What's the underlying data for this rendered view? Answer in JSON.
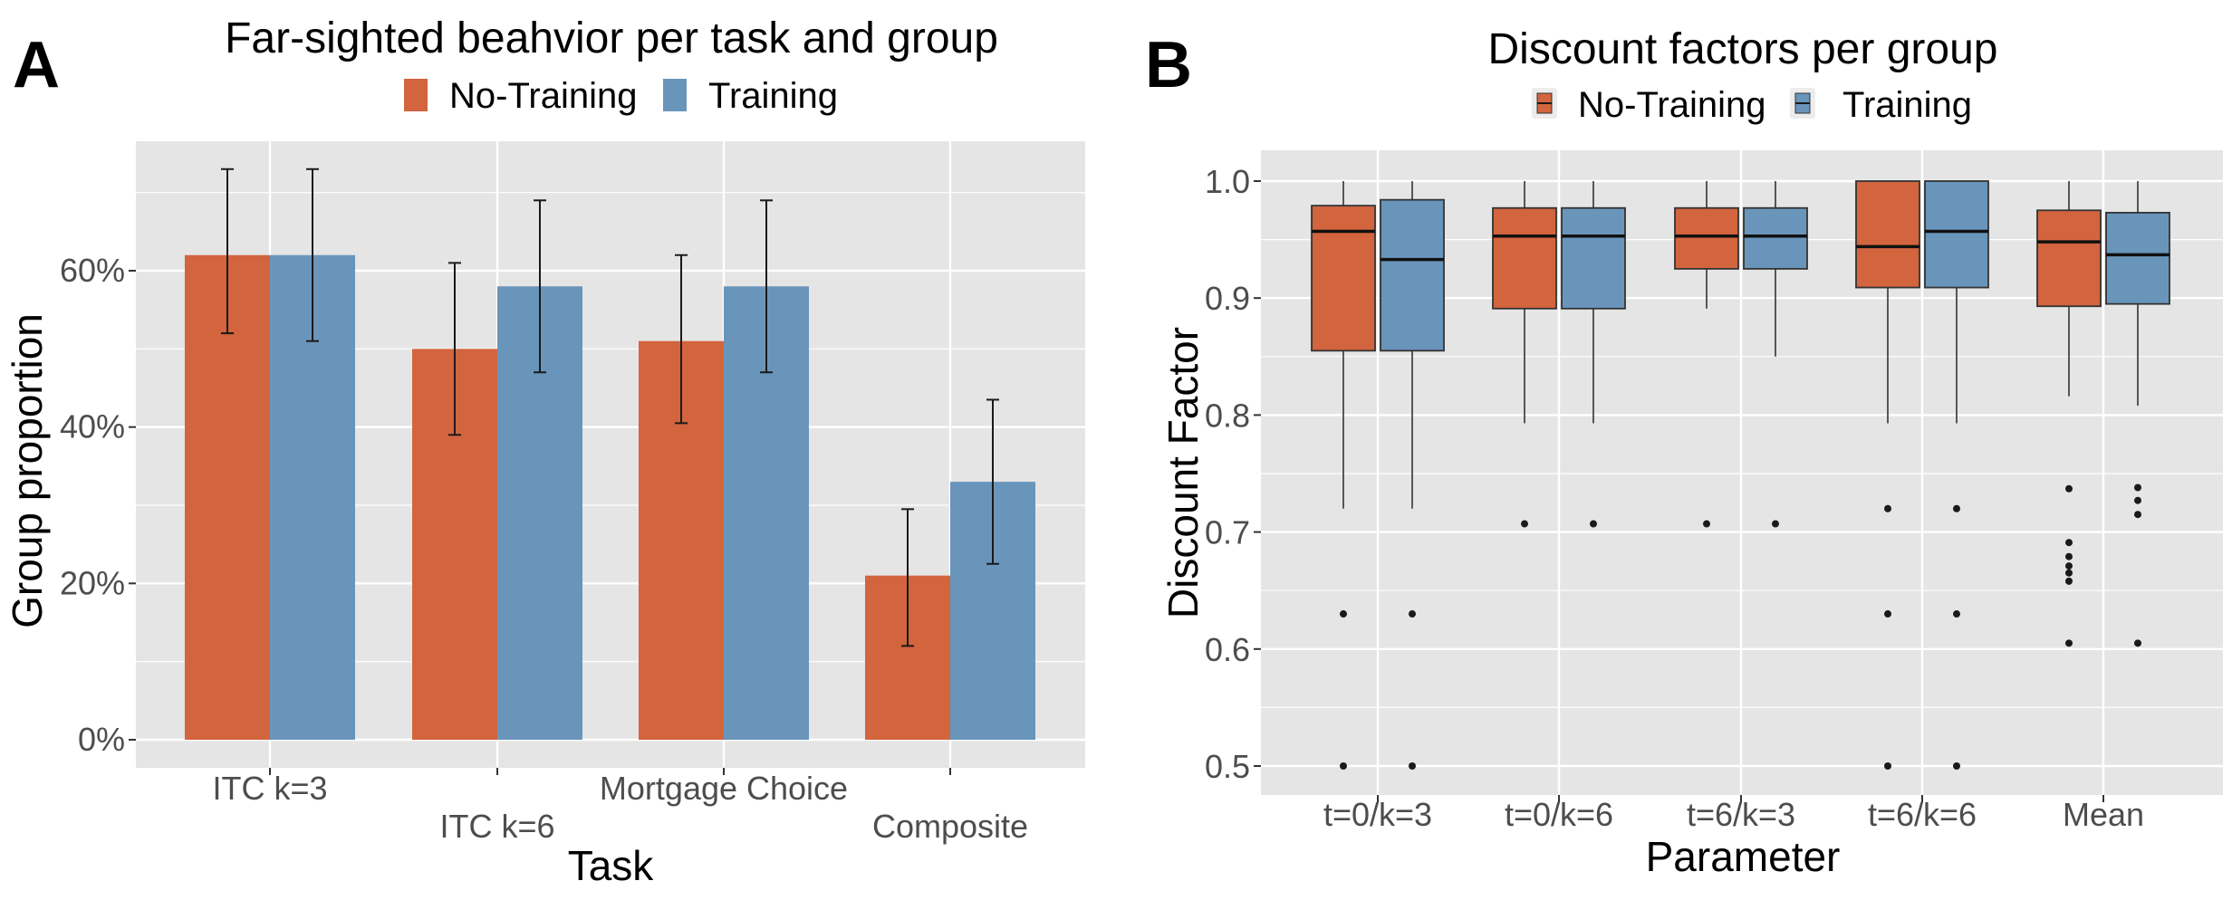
{
  "colors": {
    "no_training": "#d2643e",
    "training": "#6995bb",
    "panel_bg": "#e5e5e5",
    "grid": "#ffffff"
  },
  "chart_data": [
    {
      "panel_label": "A",
      "type": "bar",
      "title": "Far-sighted beahvior per task and group",
      "xlabel": "Task",
      "ylabel": "Group proportion",
      "categories": [
        "ITC k=3",
        "ITC k=6",
        "Mortgage Choice",
        "Composite"
      ],
      "ylim": [
        0,
        0.75
      ],
      "yticks": [
        {
          "value": 0,
          "label": "0%"
        },
        {
          "value": 0.2,
          "label": "20%"
        },
        {
          "value": 0.4,
          "label": "40%"
        },
        {
          "value": 0.6,
          "label": "60%"
        }
      ],
      "series": [
        {
          "name": "No-Training",
          "color": "#d2643e",
          "values": [
            0.62,
            0.5,
            0.51,
            0.21
          ],
          "error_low": [
            0.52,
            0.39,
            0.405,
            0.12
          ],
          "error_high": [
            0.73,
            0.61,
            0.62,
            0.295
          ]
        },
        {
          "name": "Training",
          "color": "#6995bb",
          "values": [
            0.62,
            0.58,
            0.58,
            0.33
          ],
          "error_low": [
            0.51,
            0.47,
            0.47,
            0.225
          ],
          "error_high": [
            0.73,
            0.69,
            0.69,
            0.435
          ]
        }
      ],
      "legend": "top",
      "grid": true
    },
    {
      "panel_label": "B",
      "type": "box",
      "title": "Discount factors per group",
      "xlabel": "Parameter",
      "ylabel": "Discount Factor",
      "categories": [
        "t=0/k=3",
        "t=0/k=6",
        "t=6/k=3",
        "t=6/k=6",
        "Mean"
      ],
      "ylim": [
        0.48,
        1.015
      ],
      "yticks": [
        {
          "value": 0.5,
          "label": "0.5"
        },
        {
          "value": 0.6,
          "label": "0.6"
        },
        {
          "value": 0.7,
          "label": "0.7"
        },
        {
          "value": 0.8,
          "label": "0.8"
        },
        {
          "value": 0.9,
          "label": "0.9"
        },
        {
          "value": 1.0,
          "label": "1.0"
        }
      ],
      "series": [
        {
          "name": "No-Training",
          "color": "#d2643e",
          "boxes": [
            {
              "min": 0.72,
              "q1": 0.855,
              "median": 0.957,
              "q3": 0.979,
              "max": 1.0,
              "outliers": [
                0.63,
                0.5
              ]
            },
            {
              "min": 0.793,
              "q1": 0.891,
              "median": 0.953,
              "q3": 0.977,
              "max": 1.0,
              "outliers": [
                0.707
              ]
            },
            {
              "min": 0.891,
              "q1": 0.925,
              "median": 0.953,
              "q3": 0.977,
              "max": 1.0,
              "outliers": [
                0.707
              ]
            },
            {
              "min": 0.793,
              "q1": 0.909,
              "median": 0.944,
              "q3": 1.0,
              "max": 1.0,
              "outliers": [
                0.72,
                0.63,
                0.5
              ]
            },
            {
              "min": 0.816,
              "q1": 0.893,
              "median": 0.948,
              "q3": 0.975,
              "max": 1.0,
              "outliers": [
                0.737,
                0.691,
                0.679,
                0.671,
                0.665,
                0.658,
                0.605
              ]
            }
          ]
        },
        {
          "name": "Training",
          "color": "#6995bb",
          "boxes": [
            {
              "min": 0.72,
              "q1": 0.855,
              "median": 0.933,
              "q3": 0.984,
              "max": 1.0,
              "outliers": [
                0.63,
                0.5
              ]
            },
            {
              "min": 0.793,
              "q1": 0.891,
              "median": 0.953,
              "q3": 0.977,
              "max": 1.0,
              "outliers": [
                0.707
              ]
            },
            {
              "min": 0.85,
              "q1": 0.925,
              "median": 0.953,
              "q3": 0.977,
              "max": 1.0,
              "outliers": [
                0.707
              ]
            },
            {
              "min": 0.793,
              "q1": 0.909,
              "median": 0.957,
              "q3": 1.0,
              "max": 1.0,
              "outliers": [
                0.72,
                0.63,
                0.5
              ]
            },
            {
              "min": 0.808,
              "q1": 0.895,
              "median": 0.937,
              "q3": 0.973,
              "max": 1.0,
              "outliers": [
                0.738,
                0.727,
                0.715,
                0.605
              ]
            }
          ]
        }
      ],
      "legend": "top",
      "grid": true
    }
  ]
}
